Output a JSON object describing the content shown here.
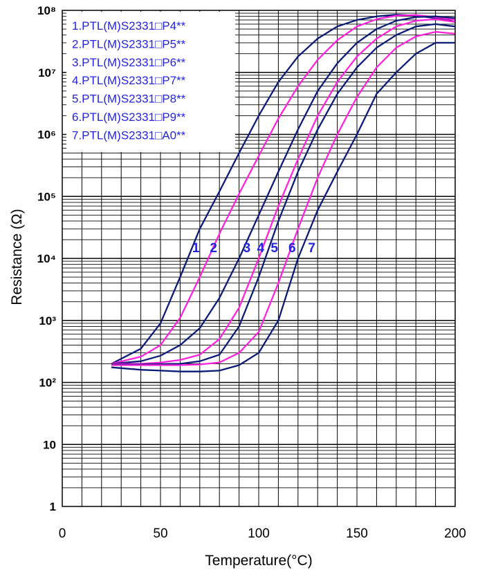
{
  "chart_data": {
    "type": "line",
    "xlabel": "Temperature(°C)",
    "ylabel": "Resistance (Ω)",
    "xlim": [
      0,
      200
    ],
    "ylim": [
      1,
      100000000
    ],
    "yscale": "log",
    "grid": true,
    "legend_position": "top-left",
    "x_ticks": [
      "0",
      "50",
      "100",
      "150",
      "200"
    ],
    "y_ticks": [
      "1",
      "10",
      "10²",
      "10³",
      "10⁴",
      "10⁵",
      "10⁶",
      "10⁷",
      "10⁸"
    ],
    "legend": [
      "1.PTL(M)S2331□P4**",
      "2.PTL(M)S2331□P5**",
      "3.PTL(M)S2331□P6**",
      "4.PTL(M)S2331□P7**",
      "5.PTL(M)S2331□P8**",
      "6.PTL(M)S2331□P9**",
      "7.PTL(M)S2331□A0**"
    ],
    "curve_labels": [
      {
        "text": "1",
        "x": 68,
        "y": 15000
      },
      {
        "text": "2",
        "x": 77,
        "y": 15000
      },
      {
        "text": "3",
        "x": 94,
        "y": 15000
      },
      {
        "text": "4",
        "x": 101,
        "y": 15000
      },
      {
        "text": "5",
        "x": 108,
        "y": 15000
      },
      {
        "text": "6",
        "x": 117,
        "y": 15000
      },
      {
        "text": "7",
        "x": 127,
        "y": 15000
      }
    ],
    "colors": {
      "navy": "#0a1a78",
      "magenta": "#ff22dd",
      "label": "#2323e0"
    },
    "series": [
      {
        "color": "#0a1a78",
        "x": [
          25,
          40,
          50,
          60,
          70,
          80,
          90,
          100,
          110,
          120,
          130,
          140,
          150,
          160,
          170,
          180,
          190,
          200
        ],
        "y": [
          200,
          350,
          900,
          5000,
          30000,
          120000,
          500000,
          2000000,
          7000000,
          18000000,
          35000000,
          55000000,
          70000000,
          80000000,
          85000000,
          82000000,
          75000000,
          65000000
        ]
      },
      {
        "color": "#ff22dd",
        "x": [
          25,
          40,
          50,
          60,
          70,
          80,
          90,
          100,
          110,
          120,
          130,
          140,
          150,
          160,
          170,
          180,
          190,
          200
        ],
        "y": [
          200,
          260,
          400,
          1100,
          5000,
          25000,
          110000,
          450000,
          1800000,
          6000000,
          16000000,
          33000000,
          55000000,
          72000000,
          82000000,
          84000000,
          78000000,
          70000000
        ]
      },
      {
        "color": "#0a1a78",
        "x": [
          25,
          40,
          50,
          60,
          70,
          80,
          90,
          100,
          110,
          120,
          130,
          140,
          150,
          160,
          170,
          180,
          190,
          200
        ],
        "y": [
          200,
          220,
          270,
          400,
          750,
          2300,
          10000,
          50000,
          250000,
          1200000,
          5000000,
          14000000,
          30000000,
          50000000,
          68000000,
          78000000,
          80000000,
          75000000
        ]
      },
      {
        "color": "#ff22dd",
        "x": [
          25,
          40,
          50,
          60,
          70,
          80,
          90,
          100,
          110,
          120,
          130,
          140,
          150,
          160,
          170,
          180,
          190,
          200
        ],
        "y": [
          200,
          200,
          210,
          230,
          280,
          500,
          1600,
          10000,
          70000,
          400000,
          2000000,
          7000000,
          18000000,
          35000000,
          55000000,
          68000000,
          72000000,
          65000000
        ]
      },
      {
        "color": "#0a1a78",
        "x": [
          25,
          40,
          50,
          60,
          70,
          80,
          90,
          100,
          110,
          120,
          130,
          140,
          150,
          160,
          170,
          180,
          190,
          200
        ],
        "y": [
          195,
          195,
          198,
          200,
          220,
          280,
          800,
          5000,
          40000,
          250000,
          1200000,
          4500000,
          12000000,
          25000000,
          40000000,
          55000000,
          60000000,
          55000000
        ]
      },
      {
        "color": "#ff22dd",
        "x": [
          25,
          40,
          50,
          60,
          70,
          80,
          90,
          100,
          110,
          120,
          130,
          140,
          150,
          160,
          170,
          180,
          190,
          200
        ],
        "y": [
          190,
          190,
          190,
          190,
          195,
          210,
          300,
          650,
          4000,
          30000,
          200000,
          1000000,
          4000000,
          12000000,
          25000000,
          38000000,
          45000000,
          42000000
        ]
      },
      {
        "color": "#0a1a78",
        "x": [
          25,
          40,
          50,
          60,
          70,
          80,
          90,
          100,
          110,
          120,
          130,
          140,
          150,
          160,
          170,
          180,
          190,
          200
        ],
        "y": [
          175,
          160,
          155,
          150,
          150,
          155,
          190,
          300,
          1000,
          10000,
          60000,
          250000,
          1000000,
          4500000,
          10000000,
          20000000,
          30000000,
          30000000
        ]
      }
    ]
  }
}
